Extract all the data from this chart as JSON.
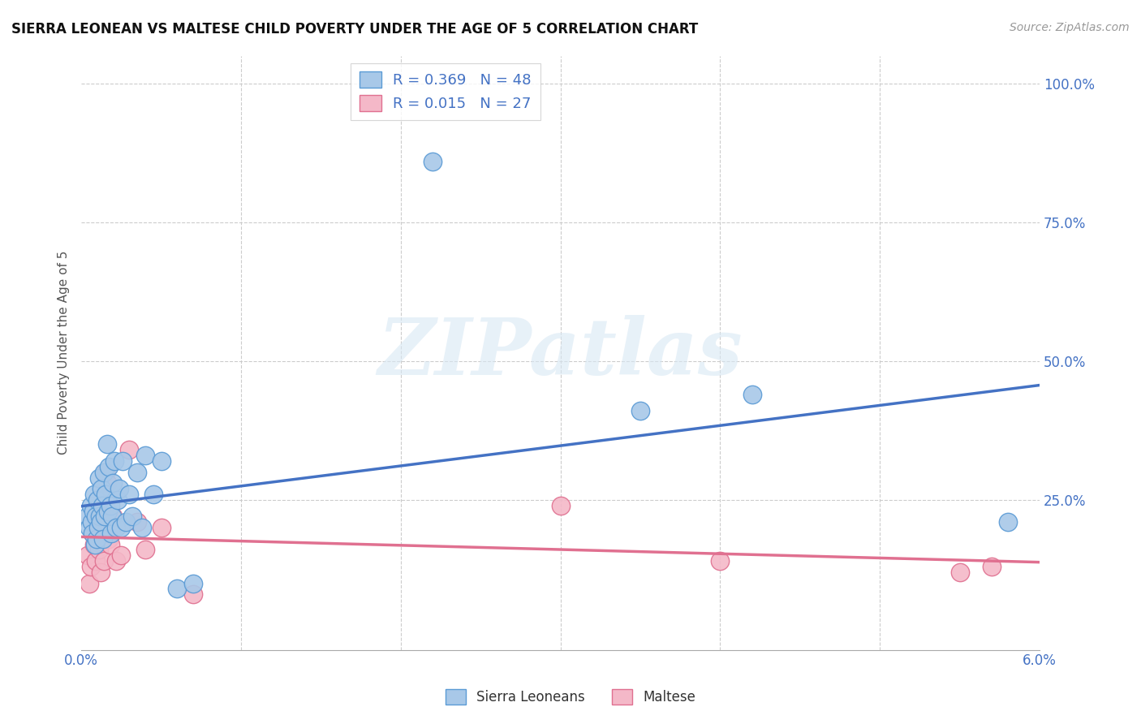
{
  "title": "SIERRA LEONEAN VS MALTESE CHILD POVERTY UNDER THE AGE OF 5 CORRELATION CHART",
  "source": "Source: ZipAtlas.com",
  "ylabel": "Child Poverty Under the Age of 5",
  "background_color": "#ffffff",
  "plot_bg": "#ffffff",
  "grid_color": "#cccccc",
  "sierra_color": "#a8c8e8",
  "maltese_color": "#f4b8c8",
  "sierra_edge_color": "#5b9bd5",
  "maltese_edge_color": "#e07090",
  "sierra_line_color": "#4472c4",
  "maltese_line_color": "#e07090",
  "legend_sierra_label": "R = 0.369   N = 48",
  "legend_maltese_label": "R = 0.015   N = 27",
  "watermark_text": "ZIPatlas",
  "xlim": [
    0.0,
    0.06
  ],
  "ylim": [
    -0.02,
    1.05
  ],
  "ytick_vals": [
    0.0,
    0.25,
    0.5,
    0.75,
    1.0
  ],
  "ytick_labels": [
    "",
    "25.0%",
    "50.0%",
    "75.0%",
    "100.0%"
  ],
  "xtick_vals": [
    0.0,
    0.01,
    0.02,
    0.03,
    0.04,
    0.05,
    0.06
  ],
  "sierra_leoneans_x": [
    0.0004,
    0.0005,
    0.0006,
    0.00065,
    0.0007,
    0.00075,
    0.0008,
    0.00085,
    0.0009,
    0.00095,
    0.001,
    0.00105,
    0.0011,
    0.00115,
    0.0012,
    0.00125,
    0.0013,
    0.00135,
    0.0014,
    0.00145,
    0.0015,
    0.0016,
    0.00165,
    0.0017,
    0.0018,
    0.00185,
    0.0019,
    0.002,
    0.0021,
    0.0022,
    0.0023,
    0.0024,
    0.0025,
    0.0026,
    0.0028,
    0.003,
    0.0032,
    0.0035,
    0.0038,
    0.004,
    0.0045,
    0.005,
    0.006,
    0.007,
    0.022,
    0.035,
    0.042,
    0.058
  ],
  "sierra_leoneans_y": [
    0.22,
    0.2,
    0.24,
    0.21,
    0.19,
    0.23,
    0.26,
    0.17,
    0.22,
    0.18,
    0.25,
    0.2,
    0.29,
    0.22,
    0.21,
    0.27,
    0.24,
    0.18,
    0.3,
    0.22,
    0.26,
    0.35,
    0.23,
    0.31,
    0.24,
    0.19,
    0.22,
    0.28,
    0.32,
    0.2,
    0.25,
    0.27,
    0.2,
    0.32,
    0.21,
    0.26,
    0.22,
    0.3,
    0.2,
    0.33,
    0.26,
    0.32,
    0.09,
    0.1,
    0.86,
    0.41,
    0.44,
    0.21
  ],
  "maltese_x": [
    0.0004,
    0.0005,
    0.0006,
    0.0007,
    0.0008,
    0.0009,
    0.001,
    0.0011,
    0.0012,
    0.0013,
    0.0014,
    0.0015,
    0.0016,
    0.0017,
    0.0018,
    0.002,
    0.0022,
    0.0025,
    0.003,
    0.0035,
    0.004,
    0.005,
    0.007,
    0.03,
    0.04,
    0.055,
    0.057
  ],
  "maltese_y": [
    0.15,
    0.1,
    0.13,
    0.19,
    0.17,
    0.14,
    0.2,
    0.16,
    0.12,
    0.22,
    0.14,
    0.3,
    0.28,
    0.18,
    0.17,
    0.22,
    0.14,
    0.15,
    0.34,
    0.21,
    0.16,
    0.2,
    0.08,
    0.24,
    0.14,
    0.12,
    0.13
  ]
}
